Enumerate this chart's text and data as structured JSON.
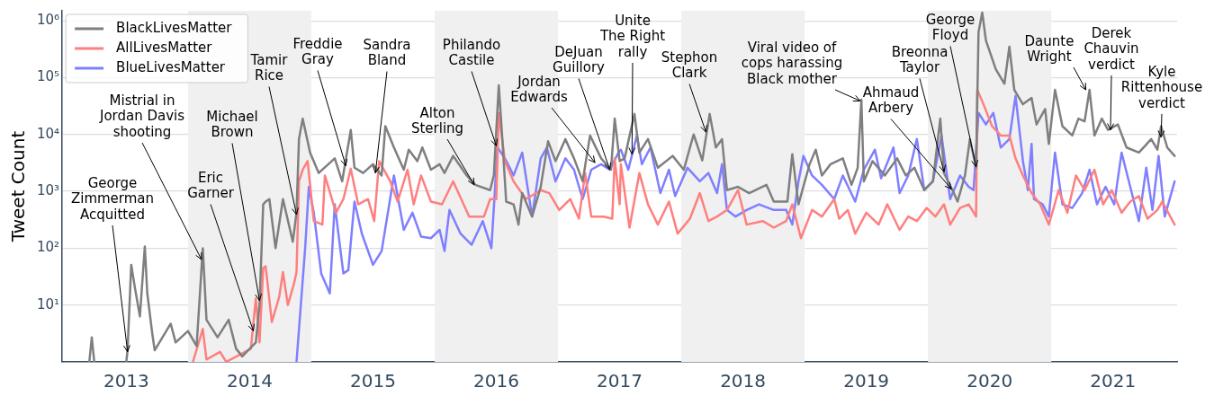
{
  "chart_data": {
    "type": "line",
    "ylabel": "Tweet Count",
    "log": "y",
    "grid": "y",
    "legend": "top left",
    "xlim": [
      2012.48,
      2021.52
    ],
    "xticks": [
      2013,
      2014,
      2015,
      2016,
      2017,
      2018,
      2019,
      2020,
      2021
    ],
    "ylim": [
      1,
      1500000
    ],
    "yticks": [
      {
        "value": 10,
        "label": "10¹"
      },
      {
        "value": 100,
        "label": "10²"
      },
      {
        "value": 1000,
        "label": "10³"
      },
      {
        "value": 10000,
        "label": "10⁴"
      },
      {
        "value": 100000,
        "label": "10⁵"
      },
      {
        "value": 1000000,
        "label": "10⁶"
      }
    ],
    "bands": [
      {
        "axis": "x",
        "from": 2013.5,
        "to": 2014.5,
        "color": "#f0f0f0"
      },
      {
        "axis": "x",
        "from": 2015.5,
        "to": 2016.5,
        "color": "#f0f0f0"
      },
      {
        "axis": "x",
        "from": 2017.5,
        "to": 2018.5,
        "color": "#f0f0f0"
      },
      {
        "axis": "x",
        "from": 2019.5,
        "to": 2020.5,
        "color": "#f0f0f0"
      }
    ],
    "series": [
      {
        "name": "BlackLivesMatter",
        "color": "#7f7f7f",
        "x": [
          2012.7,
          2012.72,
          2012.74,
          2012.9,
          2013.0,
          2013.01,
          2013.04,
          2013.07,
          2013.11,
          2013.15,
          2013.17,
          2013.21,
          2013.23,
          2013.36,
          2013.4,
          2013.5,
          2013.57,
          2013.62,
          2013.65,
          2013.74,
          2013.83,
          2013.89,
          2013.94,
          2014.05,
          2014.08,
          2014.11,
          2014.13,
          2014.16,
          2014.21,
          2014.27,
          2014.35,
          2014.38,
          2014.4,
          2014.43,
          2014.49,
          2014.56,
          2014.69,
          2014.75,
          2014.82,
          2014.85,
          2014.92,
          2015.0,
          2015.07,
          2015.1,
          2015.17,
          2015.25,
          2015.29,
          2015.36,
          2015.4,
          2015.47,
          2015.54,
          2015.58,
          2015.65,
          2015.76,
          2015.83,
          2015.95,
          2015.98,
          2016.02,
          2016.05,
          2016.08,
          2016.14,
          2016.18,
          2016.21,
          2016.29,
          2016.36,
          2016.42,
          2016.48,
          2016.56,
          2016.63,
          2016.7,
          2016.76,
          2016.85,
          2016.93,
          2016.96,
          2017.0,
          2017.04,
          2017.12,
          2017.16,
          2017.23,
          2017.31,
          2017.43,
          2017.52,
          2017.6,
          2017.67,
          2017.73,
          2017.78,
          2017.83,
          2017.87,
          2017.96,
          2018.05,
          2018.19,
          2018.25,
          2018.36,
          2018.4,
          2018.45,
          2018.54,
          2018.59,
          2018.64,
          2018.71,
          2018.81,
          2018.88,
          2018.93,
          2018.96,
          2018.98,
          2019.05,
          2019.15,
          2019.25,
          2019.32,
          2019.39,
          2019.47,
          2019.54,
          2019.6,
          2019.63,
          2019.71,
          2019.74,
          2019.8,
          2019.84,
          2019.89,
          2019.91,
          2019.94,
          2019.97,
          2020.05,
          2020.12,
          2020.16,
          2020.2,
          2020.27,
          2020.34,
          2020.38,
          2020.45,
          2020.48,
          2020.53,
          2020.59,
          2020.67,
          2020.72,
          2020.77,
          2020.81,
          2020.85,
          2020.91,
          2020.96,
          2021.04,
          2021.11,
          2021.21,
          2021.31,
          2021.36,
          2021.39,
          2021.44,
          2021.5
        ],
        "values": [
          1,
          2.7,
          1,
          null,
          1,
          1.6,
          51,
          20,
          6.3,
          107,
          16,
          3.2,
          1.6,
          4.7,
          2.2,
          3.5,
          1.9,
          100,
          5.5,
          2.7,
          5.5,
          1.7,
          1.25,
          2.2,
          10,
          590,
          660,
          730,
          100,
          730,
          130,
          420,
          8300,
          19000,
          4800,
          2100,
          3800,
          1500,
          12000,
          2600,
          2100,
          3000,
          1900,
          14000,
          5900,
          2400,
          5400,
          3400,
          5900,
          2400,
          3000,
          2100,
          4200,
          1900,
          1300,
          1050,
          1900,
          73000,
          7600,
          660,
          590,
          260,
          930,
          360,
          1200,
          7600,
          3400,
          8300,
          3800,
          1500,
          9600,
          3800,
          2400,
          19000,
          3400,
          3800,
          23000,
          4800,
          8300,
          2600,
          4200,
          2400,
          10000,
          3500,
          23000,
          5900,
          8300,
          1050,
          1200,
          930,
          1300,
          660,
          660,
          4500,
          590,
          3000,
          5400,
          1900,
          3000,
          3800,
          1300,
          2600,
          41000,
          1500,
          3400,
          1900,
          3800,
          1900,
          2600,
          1050,
          1500,
          19000,
          2100,
          930,
          660,
          1900,
          8300,
          2600,
          630000,
          1400000,
          450000,
          140000,
          78000,
          350000,
          61000,
          34000,
          44000,
          15000,
          28000,
          6800,
          61000,
          14000,
          9600,
          19000,
          17000,
          61000,
          9600,
          19000,
          12000,
          15000,
          5900,
          4800,
          8300,
          5400,
          14000,
          5900,
          4200
        ]
      },
      {
        "name": "AllLivesMatter",
        "color": "#ff7f7f",
        "x": [
          2013.54,
          2013.62,
          2013.65,
          2013.76,
          2013.81,
          2014.01,
          2014.05,
          2014.08,
          2014.11,
          2014.13,
          2014.18,
          2014.24,
          2014.27,
          2014.31,
          2014.36,
          2014.38,
          2014.4,
          2014.43,
          2014.47,
          2014.52,
          2014.59,
          2014.61,
          2014.7,
          2014.76,
          2014.82,
          2014.88,
          2014.96,
          2015.01,
          2015.05,
          2015.14,
          2015.2,
          2015.28,
          2015.33,
          2015.39,
          2015.47,
          2015.56,
          2015.65,
          2015.78,
          2015.9,
          2015.95,
          2016.0,
          2016.02,
          2016.07,
          2016.14,
          2016.24,
          2016.36,
          2016.43,
          2016.51,
          2016.6,
          2016.67,
          2016.72,
          2016.77,
          2016.87,
          2016.94,
          2016.96,
          2017.0,
          2017.01,
          2017.08,
          2017.16,
          2017.23,
          2017.31,
          2017.4,
          2017.47,
          2017.57,
          2017.65,
          2017.72,
          2017.79,
          2017.87,
          2017.96,
          2018.03,
          2018.16,
          2018.25,
          2018.35,
          2018.4,
          2018.47,
          2018.56,
          2018.64,
          2018.74,
          2018.78,
          2018.85,
          2018.91,
          2019.0,
          2019.1,
          2019.17,
          2019.27,
          2019.34,
          2019.41,
          2019.49,
          2019.56,
          2019.63,
          2019.68,
          2019.76,
          2019.83,
          2019.89,
          2019.9,
          2019.95,
          2020.02,
          2020.09,
          2020.16,
          2020.21,
          2020.27,
          2020.34,
          2020.41,
          2020.48,
          2020.56,
          2020.63,
          2020.7,
          2020.77,
          2020.85,
          2020.92,
          2020.99,
          2021.07,
          2021.14,
          2021.21,
          2021.28,
          2021.36,
          2021.4,
          2021.5
        ],
        "values": [
          1,
          3.8,
          1.1,
          1.5,
          1,
          1.7,
          13,
          2.2,
          45,
          48,
          5,
          14,
          38,
          10,
          24,
          38,
          1500,
          2400,
          3400,
          300,
          260,
          1900,
          420,
          730,
          2500,
          590,
          730,
          300,
          3400,
          1500,
          660,
          2400,
          590,
          1900,
          660,
          590,
          1500,
          360,
          360,
          730,
          730,
          24000,
          3400,
          1500,
          730,
          1050,
          930,
          470,
          730,
          330,
          2100,
          360,
          360,
          330,
          3800,
          590,
          3000,
          230,
          2100,
          590,
          260,
          660,
          180,
          330,
          930,
          300,
          360,
          470,
          1050,
          260,
          300,
          230,
          300,
          590,
          150,
          470,
          360,
          730,
          330,
          470,
          180,
          420,
          260,
          590,
          210,
          360,
          300,
          510,
          360,
          590,
          260,
          510,
          590,
          360,
          61000,
          34000,
          14000,
          9600,
          9600,
          3800,
          1900,
          930,
          590,
          260,
          1050,
          420,
          1900,
          1050,
          2400,
          590,
          1050,
          420,
          660,
          830,
          330,
          470,
          660,
          260
        ]
      },
      {
        "name": "BlueLivesMatter",
        "color": "#7f7fff",
        "x": [
          2014.38,
          2014.45,
          2014.48,
          2014.52,
          2014.58,
          2014.65,
          2014.69,
          2014.76,
          2014.8,
          2014.85,
          2014.91,
          2015.0,
          2015.07,
          2015.17,
          2015.25,
          2015.32,
          2015.39,
          2015.47,
          2015.54,
          2015.58,
          2015.62,
          2015.71,
          2015.8,
          2015.89,
          2015.96,
          2016.01,
          2016.07,
          2016.14,
          2016.21,
          2016.29,
          2016.36,
          2016.41,
          2016.48,
          2016.56,
          2016.63,
          2016.7,
          2016.77,
          2016.85,
          2016.92,
          2016.99,
          2017.01,
          2017.07,
          2017.14,
          2017.18,
          2017.25,
          2017.33,
          2017.4,
          2017.45,
          2017.55,
          2017.65,
          2017.72,
          2017.79,
          2017.83,
          2017.87,
          2017.94,
          2018.03,
          2018.13,
          2018.25,
          2018.35,
          2018.4,
          2018.45,
          2018.49,
          2018.56,
          2018.64,
          2018.74,
          2018.81,
          2018.91,
          2018.98,
          2019.07,
          2019.12,
          2019.22,
          2019.27,
          2019.34,
          2019.41,
          2019.47,
          2019.54,
          2019.61,
          2019.68,
          2019.76,
          2019.83,
          2019.87,
          2019.91,
          2019.97,
          2020.03,
          2020.09,
          2020.16,
          2020.21,
          2020.27,
          2020.31,
          2020.34,
          2020.36,
          2020.43,
          2020.48,
          2020.53,
          2020.59,
          2020.67,
          2020.75,
          2020.81,
          2020.87,
          2020.94,
          2021.01,
          2021.07,
          2021.14,
          2021.21,
          2021.27,
          2021.32,
          2021.37,
          2021.42,
          2021.5
        ],
        "values": [
          1,
          100,
          1200,
          420,
          36,
          16,
          590,
          36,
          41,
          660,
          180,
          51,
          89,
          1900,
          210,
          420,
          160,
          150,
          210,
          89,
          470,
          180,
          115,
          300,
          100,
          5900,
          3800,
          1900,
          4800,
          360,
          3800,
          5900,
          1500,
          3800,
          2400,
          730,
          2400,
          3000,
          2400,
          4800,
          5400,
          2400,
          9600,
          3000,
          5900,
          930,
          2400,
          830,
          2600,
          1500,
          2100,
          930,
          3000,
          470,
          360,
          470,
          590,
          470,
          470,
          260,
          1500,
          4200,
          1900,
          1300,
          730,
          1900,
          660,
          2400,
          5400,
          1700,
          5900,
          930,
          1900,
          8300,
          1050,
          1500,
          9600,
          730,
          1900,
          1200,
          1050,
          24000,
          15000,
          24000,
          5900,
          8300,
          48000,
          3400,
          1050,
          6800,
          730,
          590,
          360,
          4800,
          590,
          510,
          930,
          2400,
          590,
          1200,
          590,
          4800,
          1200,
          300,
          2600,
          470,
          4200,
          360,
          1500
        ]
      }
    ],
    "annotations": [
      {
        "text": "George\nZimmerman\nAcquitted",
        "x": 2013.01,
        "y": 1.5
      },
      {
        "text": "Mistrial in\nJordan Davis\nshooting",
        "x": 2013.61,
        "y": 63
      },
      {
        "text": "Eric\nGarner",
        "x": 2014.03,
        "y": 3.5
      },
      {
        "text": "Michael\nBrown",
        "x": 2014.08,
        "y": 12
      },
      {
        "text": "Tamir\nRice",
        "x": 2014.38,
        "y": 390
      },
      {
        "text": "Freddie\nGray",
        "x": 2014.78,
        "y": 2800
      },
      {
        "text": "Sandra\nBland",
        "x": 2015.02,
        "y": 2100
      },
      {
        "text": "Alton\nSterling",
        "x": 2015.82,
        "y": 1300
      },
      {
        "text": "Philando\nCastile",
        "x": 2016.0,
        "y": 6300
      },
      {
        "text": "Jordan\nEdwards",
        "x": 2016.8,
        "y": 3200
      },
      {
        "text": "DeJuan\nGuillory",
        "x": 2016.92,
        "y": 2400
      },
      {
        "text": "Unite\nThe Right\nrally",
        "x": 2017.1,
        "y": 4500
      },
      {
        "text": "Stephon\nClark",
        "x": 2017.7,
        "y": 11000
      },
      {
        "text": "Viral video of\ncops harassing\nBlack mother",
        "x": 2018.95,
        "y": 39000
      },
      {
        "text": "Ahmaud\nArbery",
        "x": 2019.69,
        "y": 1100
      },
      {
        "text": "Breonna\nTaylor",
        "x": 2019.63,
        "y": 2200
      },
      {
        "text": "George\nFloyd",
        "x": 2019.89,
        "y": 2700
      },
      {
        "text": "Daunte\nWright",
        "x": 2020.78,
        "y": 61000
      },
      {
        "text": "Derek\nChauvin\nverdict",
        "x": 2020.98,
        "y": 12000
      },
      {
        "text": "Kyle\nRittenhouse\nverdict",
        "x": 2021.39,
        "y": 9000
      }
    ]
  }
}
